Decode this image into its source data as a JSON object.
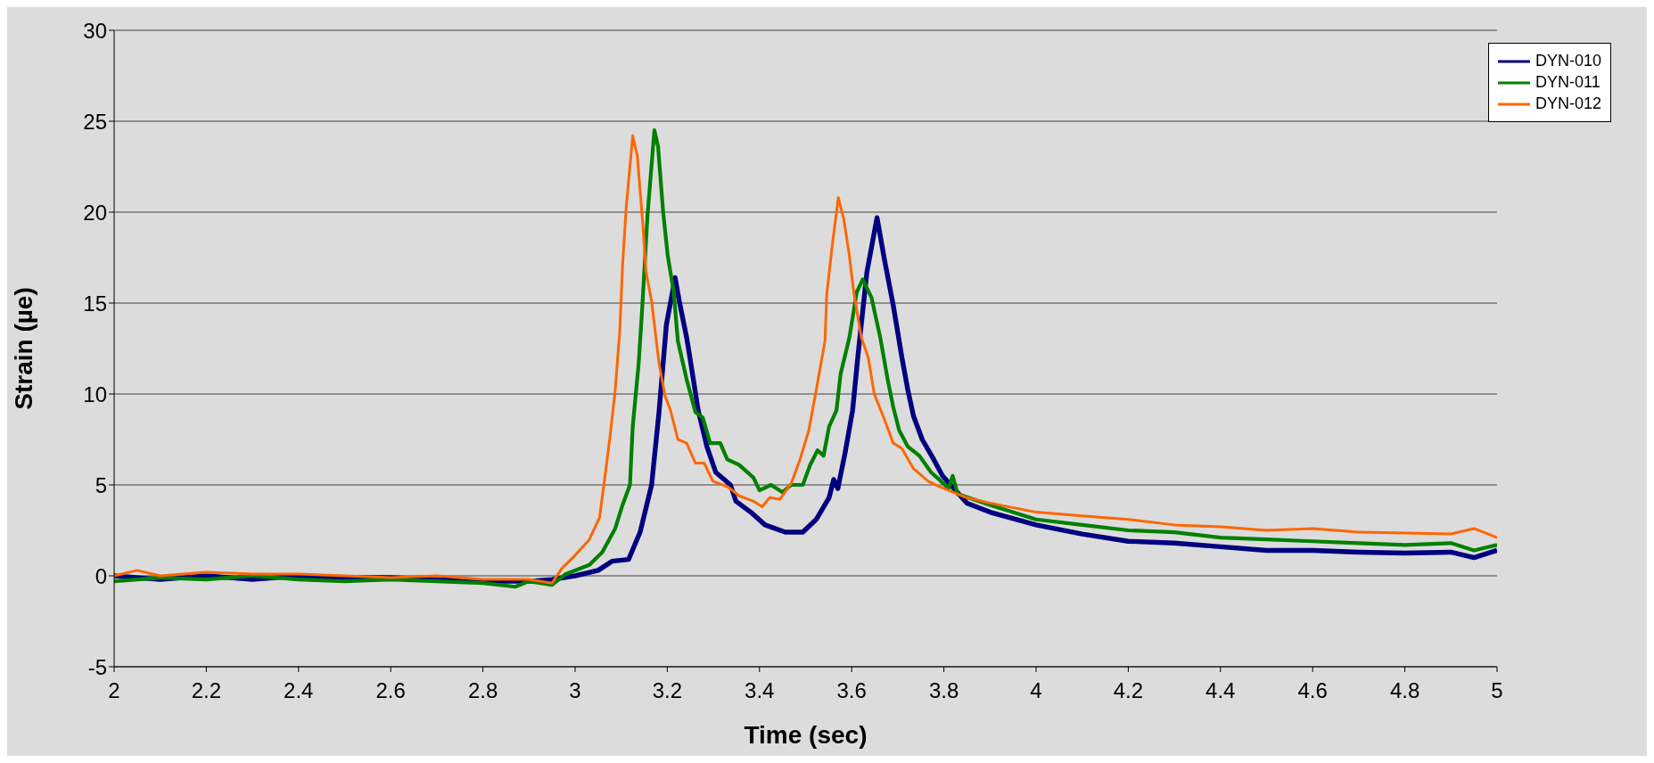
{
  "chart_data": {
    "type": "line",
    "xlabel": "Time (sec)",
    "ylabel": "Strain (µe)",
    "xlim": [
      2,
      5
    ],
    "xticks": [
      2,
      2.2,
      2.4,
      2.6,
      2.8,
      3,
      3.2,
      3.4,
      3.6,
      3.8,
      4,
      4.2,
      4.4,
      4.6,
      4.8,
      5
    ],
    "ylim": [
      -5,
      30
    ],
    "yticks": [
      -5,
      0,
      5,
      10,
      15,
      20,
      25,
      30
    ],
    "grid": "y",
    "legend": "top right",
    "marker": "none",
    "line_style": "solid",
    "series": [
      {
        "name": "DYN-010",
        "color": "#000080",
        "x": [
          2.0,
          2.1,
          2.2,
          2.3,
          2.4,
          2.5,
          2.6,
          2.7,
          2.8,
          2.9,
          2.95,
          3.0,
          3.05,
          3.08,
          3.116,
          3.141,
          3.166,
          3.182,
          3.198,
          3.217,
          3.226,
          3.242,
          3.251,
          3.267,
          3.286,
          3.305,
          3.337,
          3.349,
          3.381,
          3.412,
          3.456,
          3.494,
          3.523,
          3.551,
          3.561,
          3.57,
          3.586,
          3.602,
          3.614,
          3.633,
          3.655,
          3.671,
          3.69,
          3.709,
          3.722,
          3.734,
          3.753,
          3.778,
          3.797,
          3.85,
          3.9,
          4.0,
          4.1,
          4.2,
          4.3,
          4.4,
          4.5,
          4.6,
          4.7,
          4.8,
          4.9,
          4.95,
          5.0
        ],
        "values": [
          0,
          -0.2,
          0,
          -0.2,
          0,
          -0.1,
          -0.1,
          -0.2,
          -0.3,
          -0.3,
          -0.2,
          0,
          0.3,
          0.8,
          0.9,
          2.4,
          5.0,
          9.0,
          13.8,
          16.4,
          15.1,
          13.1,
          11.7,
          9.1,
          7.1,
          5.7,
          5.0,
          4.1,
          3.5,
          2.8,
          2.4,
          2.4,
          3.1,
          4.3,
          5.3,
          4.8,
          6.8,
          9.1,
          12.2,
          16.7,
          19.7,
          17.4,
          14.9,
          12.0,
          10.2,
          8.8,
          7.5,
          6.4,
          5.5,
          4.0,
          3.5,
          2.8,
          2.3,
          1.9,
          1.8,
          1.6,
          1.4,
          1.4,
          1.3,
          1.25,
          1.3,
          1.0,
          1.4
        ]
      },
      {
        "name": "DYN-011",
        "color": "#008000",
        "x": [
          2.0,
          2.1,
          2.2,
          2.3,
          2.4,
          2.5,
          2.6,
          2.7,
          2.8,
          2.87,
          2.9,
          2.95,
          2.98,
          3.031,
          3.059,
          3.087,
          3.103,
          3.119,
          3.125,
          3.138,
          3.146,
          3.157,
          3.172,
          3.18,
          3.191,
          3.201,
          3.214,
          3.223,
          3.242,
          3.261,
          3.277,
          3.293,
          3.315,
          3.33,
          3.356,
          3.387,
          3.4,
          3.425,
          3.45,
          3.469,
          3.494,
          3.51,
          3.526,
          3.539,
          3.551,
          3.567,
          3.576,
          3.595,
          3.611,
          3.624,
          3.643,
          3.662,
          3.678,
          3.69,
          3.703,
          3.722,
          3.747,
          3.772,
          3.794,
          3.81,
          3.819,
          3.83,
          3.9,
          4.0,
          4.1,
          4.2,
          4.3,
          4.4,
          4.5,
          4.6,
          4.7,
          4.8,
          4.9,
          4.95,
          5.0
        ],
        "values": [
          -0.3,
          -0.1,
          -0.2,
          0,
          -0.2,
          -0.3,
          -0.2,
          -0.3,
          -0.4,
          -0.6,
          -0.3,
          -0.5,
          0.1,
          0.6,
          1.3,
          2.6,
          3.9,
          5.0,
          8.2,
          11.7,
          14.9,
          19.8,
          24.5,
          23.6,
          20.0,
          17.6,
          15.6,
          12.9,
          10.8,
          9.0,
          8.7,
          7.3,
          7.3,
          6.4,
          6.1,
          5.4,
          4.7,
          5.0,
          4.6,
          5.0,
          5.0,
          6.1,
          6.9,
          6.6,
          8.2,
          9.1,
          11.1,
          13.1,
          15.6,
          16.3,
          15.3,
          13.1,
          10.8,
          9.3,
          8.0,
          7.1,
          6.6,
          5.7,
          5.2,
          4.8,
          5.5,
          4.5,
          3.9,
          3.1,
          2.8,
          2.5,
          2.4,
          2.1,
          2.0,
          1.9,
          1.8,
          1.7,
          1.8,
          1.4,
          1.7
        ]
      },
      {
        "name": "DYN-012",
        "color": "#ff6600",
        "x": [
          2.0,
          2.05,
          2.1,
          2.2,
          2.3,
          2.4,
          2.5,
          2.6,
          2.7,
          2.8,
          2.9,
          2.95,
          2.971,
          2.999,
          3.031,
          3.053,
          3.065,
          3.075,
          3.087,
          3.097,
          3.103,
          3.111,
          3.125,
          3.135,
          3.147,
          3.154,
          3.166,
          3.182,
          3.195,
          3.207,
          3.223,
          3.242,
          3.261,
          3.28,
          3.299,
          3.331,
          3.356,
          3.387,
          3.406,
          3.422,
          3.444,
          3.469,
          3.488,
          3.507,
          3.523,
          3.542,
          3.546,
          3.558,
          3.571,
          3.583,
          3.595,
          3.605,
          3.621,
          3.636,
          3.649,
          3.671,
          3.69,
          3.709,
          3.734,
          3.766,
          3.791,
          3.85,
          3.9,
          4.0,
          4.1,
          4.2,
          4.3,
          4.4,
          4.5,
          4.6,
          4.7,
          4.8,
          4.9,
          4.95,
          5.0
        ],
        "values": [
          0,
          0.3,
          0,
          0.2,
          0.1,
          0.1,
          0,
          -0.1,
          0,
          -0.2,
          -0.2,
          -0.4,
          0.4,
          1.1,
          2.0,
          3.2,
          5.5,
          7.5,
          10.2,
          13.5,
          17.1,
          20.3,
          24.2,
          23.1,
          19.3,
          16.7,
          15.1,
          11.7,
          9.9,
          9.1,
          7.5,
          7.3,
          6.2,
          6.2,
          5.2,
          4.9,
          4.4,
          4.1,
          3.8,
          4.3,
          4.2,
          5.1,
          6.4,
          8.0,
          10.2,
          12.9,
          15.5,
          18.2,
          20.8,
          19.6,
          17.6,
          15.5,
          13.1,
          12.0,
          10.0,
          8.6,
          7.3,
          7.0,
          5.9,
          5.2,
          4.9,
          4.3,
          4.0,
          3.5,
          3.3,
          3.1,
          2.8,
          2.7,
          2.5,
          2.6,
          2.4,
          2.35,
          2.3,
          2.6,
          2.1
        ]
      }
    ]
  }
}
